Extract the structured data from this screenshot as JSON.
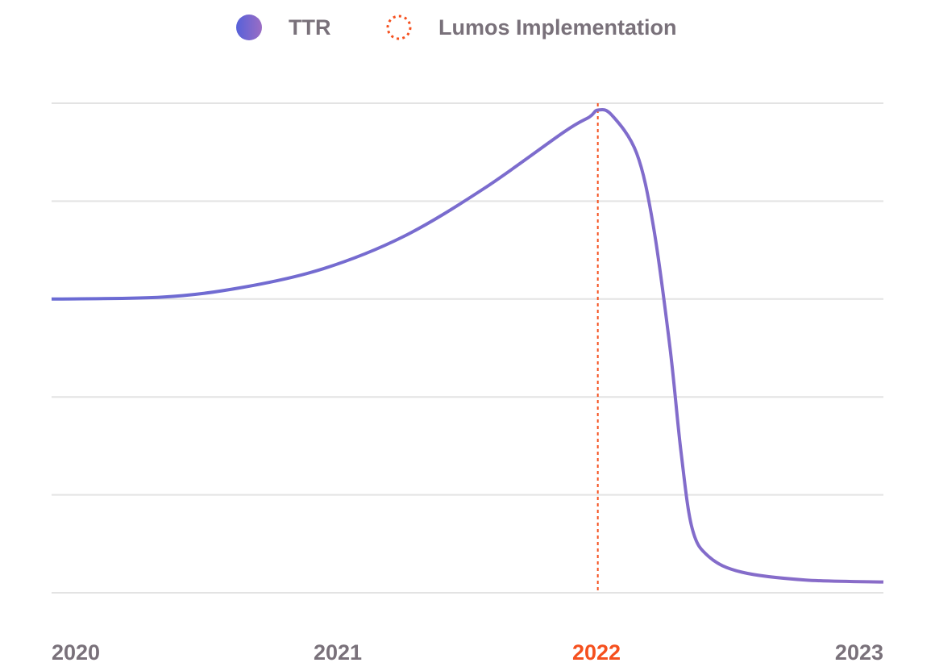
{
  "chart_data": {
    "type": "line",
    "title": "",
    "xlabel": "",
    "ylabel": "",
    "xlim": [
      2020,
      2023
    ],
    "ylim": [
      0,
      5
    ],
    "grid": true,
    "y_ticks_labeled": false,
    "legend_position": "top-center",
    "x_tick_labels": [
      "2020",
      "2021",
      "2022",
      "2023"
    ],
    "x_ticks": [
      2020,
      2021,
      2022,
      2023
    ],
    "highlighted_tick": "2022",
    "series": [
      {
        "name": "TTR",
        "color": "#7b69cc",
        "x": [
          2020.0,
          2020.4,
          2020.69,
          2020.98,
          2021.27,
          2021.56,
          2021.85,
          2021.94,
          2021.97,
          2022.02,
          2022.11,
          2022.17,
          2022.23,
          2022.27,
          2022.31,
          2022.37,
          2022.49,
          2022.72,
          2023.0
        ],
        "y": [
          3.0,
          3.02,
          3.12,
          3.31,
          3.64,
          4.13,
          4.71,
          4.86,
          4.93,
          4.88,
          4.49,
          3.75,
          2.51,
          1.44,
          0.66,
          0.37,
          0.21,
          0.13,
          0.11
        ]
      }
    ],
    "annotations": [
      {
        "name": "Lumos Implementation",
        "type": "vertical-dotted-line",
        "x": 2021.97,
        "color": "#f5501e"
      }
    ]
  },
  "legend": [
    {
      "label": "TTR",
      "icon": "filled-gradient-circle"
    },
    {
      "label": "Lumos Implementation",
      "icon": "dotted-circle"
    }
  ]
}
